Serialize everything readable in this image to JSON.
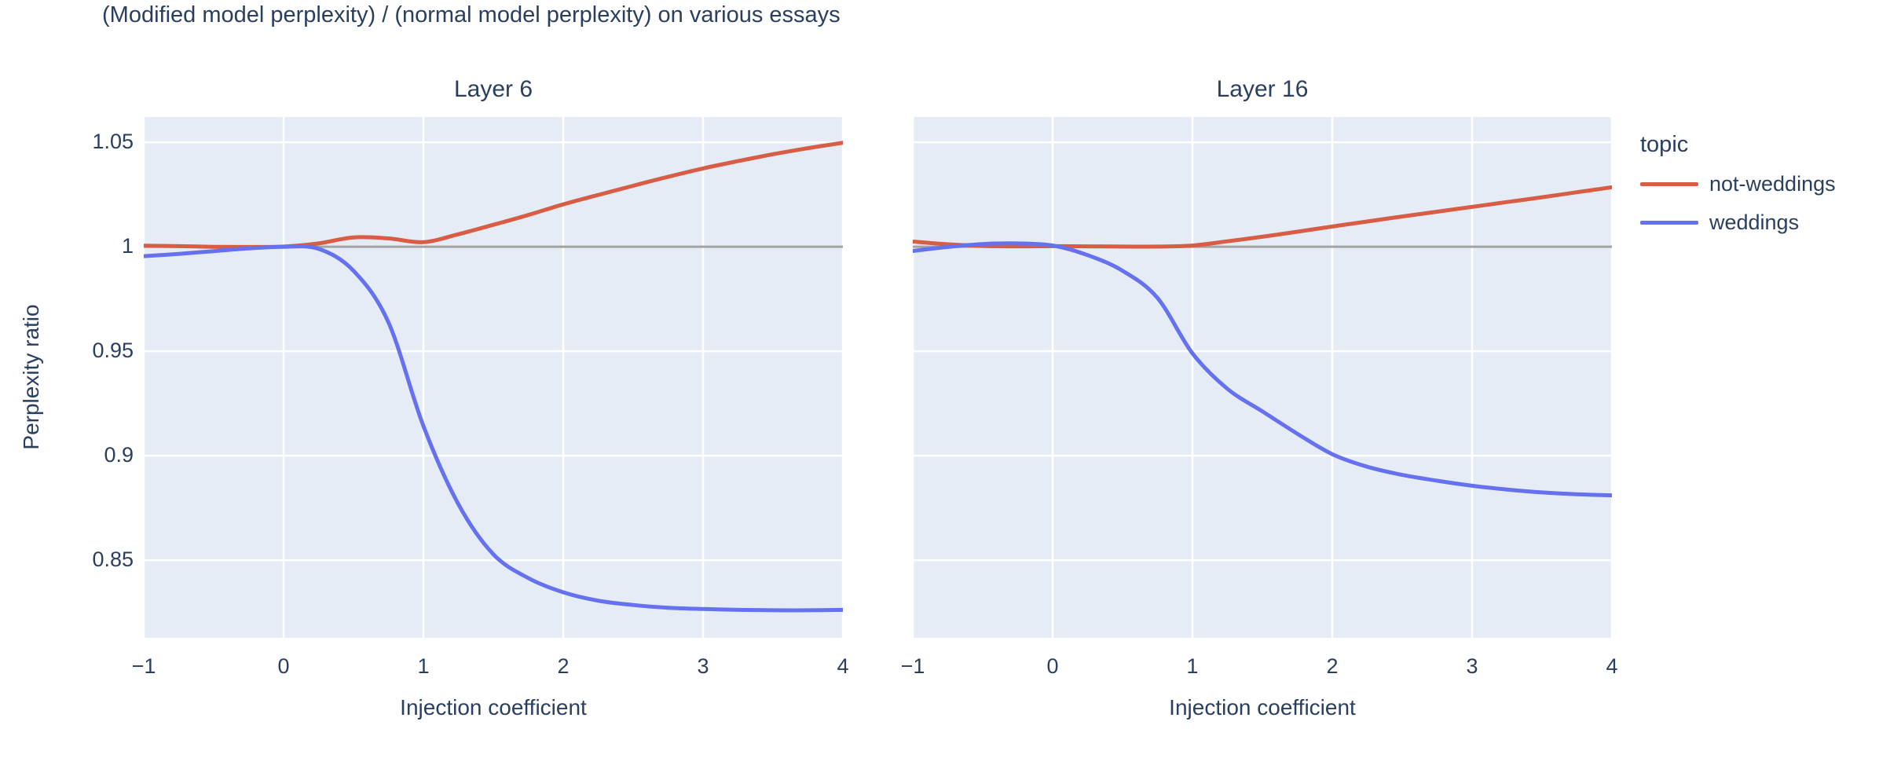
{
  "title": "(Modified model perplexity) / (normal model perplexity) on various essays",
  "colors": {
    "text": "#2a3f5f",
    "plot_background": "#e5ecf6",
    "gridline": "#ffffff",
    "reference_line": "#a3a3a3",
    "not_weddings": "#d95c44",
    "weddings": "#6571ef"
  },
  "x_axis": {
    "title": "Injection coefficient",
    "tick_values": [
      -1,
      0,
      1,
      2,
      3,
      4
    ],
    "tick_labels": [
      "−1",
      "0",
      "1",
      "2",
      "3",
      "4"
    ],
    "range": [
      -1,
      4
    ]
  },
  "y_axis": {
    "title": "Perplexity ratio",
    "tick_values": [
      1.05,
      1.0,
      0.95,
      0.9,
      0.85
    ],
    "tick_labels": [
      "1.05",
      "1",
      "0.95",
      "0.9",
      "0.85"
    ],
    "range": [
      0.8128,
      1.0621
    ]
  },
  "reference_line": {
    "y": 1
  },
  "legend": {
    "title": "topic",
    "items": [
      {
        "label": "not-weddings",
        "color": "#d95c44"
      },
      {
        "label": "weddings",
        "color": "#6571ef"
      }
    ]
  },
  "chart_data": [
    {
      "type": "line",
      "title": "Layer 6",
      "xlabel": "Injection coefficient",
      "ylabel": "Perplexity ratio",
      "x": [
        -1,
        -0.75,
        -0.5,
        -0.25,
        0,
        0.25,
        0.5,
        0.75,
        1,
        1.25,
        1.5,
        1.75,
        2,
        2.25,
        2.5,
        2.75,
        3,
        3.25,
        3.5,
        3.75,
        4
      ],
      "series": [
        {
          "name": "not-weddings",
          "values": [
            1.0005,
            1.0003,
            1.0,
            0.9999,
            1.0001,
            1.0016,
            1.0045,
            1.004,
            1.0022,
            1.006,
            1.0105,
            1.0152,
            1.0203,
            1.0248,
            1.0292,
            1.0335,
            1.0375,
            1.041,
            1.0443,
            1.0472,
            1.0498
          ]
        },
        {
          "name": "weddings",
          "values": [
            0.9955,
            0.9966,
            0.9979,
            0.9992,
            1.0,
            0.999,
            0.9885,
            0.9638,
            0.9142,
            0.8768,
            0.8528,
            0.8414,
            0.8346,
            0.8306,
            0.8285,
            0.8272,
            0.8266,
            0.8262,
            0.826,
            0.826,
            0.8262
          ]
        }
      ]
    },
    {
      "type": "line",
      "title": "Layer 16",
      "xlabel": "Injection coefficient",
      "ylabel": "Perplexity ratio",
      "x": [
        -1,
        -0.75,
        -0.5,
        -0.25,
        0,
        0.25,
        0.5,
        0.75,
        1,
        1.25,
        1.5,
        1.75,
        2,
        2.25,
        2.5,
        2.75,
        3,
        3.25,
        3.5,
        3.75,
        4
      ],
      "series": [
        {
          "name": "not-weddings",
          "values": [
            1.0025,
            1.0012,
            1.0004,
            1.0002,
            1.0003,
            1.0002,
            1.0001,
            1.0001,
            1.0006,
            1.0026,
            1.0048,
            1.0072,
            1.0097,
            1.0121,
            1.0145,
            1.0168,
            1.0191,
            1.0214,
            1.0237,
            1.0261,
            1.0285
          ]
        },
        {
          "name": "weddings",
          "values": [
            0.998,
            0.9999,
            1.0013,
            1.0016,
            1.0006,
            0.996,
            0.9885,
            0.9755,
            0.949,
            0.932,
            0.9212,
            0.9105,
            0.9007,
            0.8947,
            0.8908,
            0.888,
            0.8856,
            0.8838,
            0.8824,
            0.8815,
            0.881
          ]
        }
      ]
    }
  ]
}
